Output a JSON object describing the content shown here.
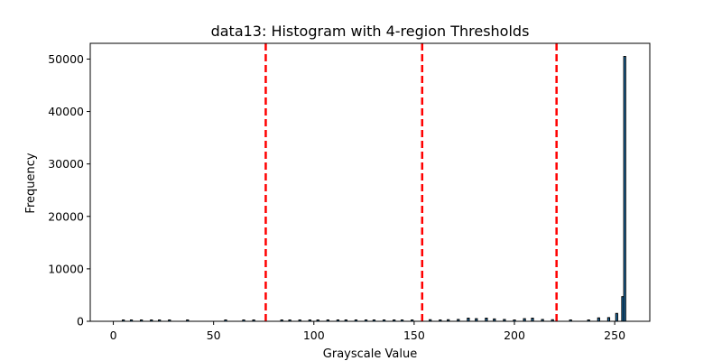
{
  "chart_data": {
    "type": "bar",
    "title": "data13: Histogram with 4-region Thresholds",
    "xlabel": "Grayscale Value",
    "ylabel": "Frequency",
    "xlim": [
      -11.5,
      267.5
    ],
    "ylim": [
      0,
      53000
    ],
    "xticks": [
      0,
      50,
      100,
      150,
      200,
      250
    ],
    "yticks": [
      0,
      10000,
      20000,
      30000,
      40000,
      50000
    ],
    "grid": false,
    "bar_color": "#1f77b4",
    "edge_color": "#000000",
    "threshold_color": "#ff0000",
    "thresholds": [
      76,
      154,
      221
    ],
    "bins": [
      {
        "x": 5,
        "y": 50
      },
      {
        "x": 9,
        "y": 40
      },
      {
        "x": 14,
        "y": 40
      },
      {
        "x": 19,
        "y": 40
      },
      {
        "x": 23,
        "y": 40
      },
      {
        "x": 28,
        "y": 40
      },
      {
        "x": 37,
        "y": 40
      },
      {
        "x": 56,
        "y": 40
      },
      {
        "x": 65,
        "y": 40
      },
      {
        "x": 70,
        "y": 40
      },
      {
        "x": 84,
        "y": 40
      },
      {
        "x": 88,
        "y": 40
      },
      {
        "x": 93,
        "y": 40
      },
      {
        "x": 98,
        "y": 40
      },
      {
        "x": 102,
        "y": 50
      },
      {
        "x": 107,
        "y": 40
      },
      {
        "x": 112,
        "y": 40
      },
      {
        "x": 116,
        "y": 40
      },
      {
        "x": 121,
        "y": 40
      },
      {
        "x": 126,
        "y": 40
      },
      {
        "x": 130,
        "y": 40
      },
      {
        "x": 135,
        "y": 40
      },
      {
        "x": 140,
        "y": 40
      },
      {
        "x": 144,
        "y": 40
      },
      {
        "x": 149,
        "y": 60
      },
      {
        "x": 158,
        "y": 300
      },
      {
        "x": 163,
        "y": 250
      },
      {
        "x": 167,
        "y": 300
      },
      {
        "x": 172,
        "y": 350
      },
      {
        "x": 177,
        "y": 600
      },
      {
        "x": 181,
        "y": 500
      },
      {
        "x": 186,
        "y": 600
      },
      {
        "x": 190,
        "y": 450
      },
      {
        "x": 195,
        "y": 350
      },
      {
        "x": 200,
        "y": 250
      },
      {
        "x": 205,
        "y": 500
      },
      {
        "x": 209,
        "y": 600
      },
      {
        "x": 214,
        "y": 350
      },
      {
        "x": 219,
        "y": 300
      },
      {
        "x": 228,
        "y": 200
      },
      {
        "x": 237,
        "y": 150
      },
      {
        "x": 242,
        "y": 650
      },
      {
        "x": 247,
        "y": 700
      },
      {
        "x": 251,
        "y": 1500
      },
      {
        "x": 254,
        "y": 4700
      },
      {
        "x": 255,
        "y": 50500
      }
    ]
  }
}
